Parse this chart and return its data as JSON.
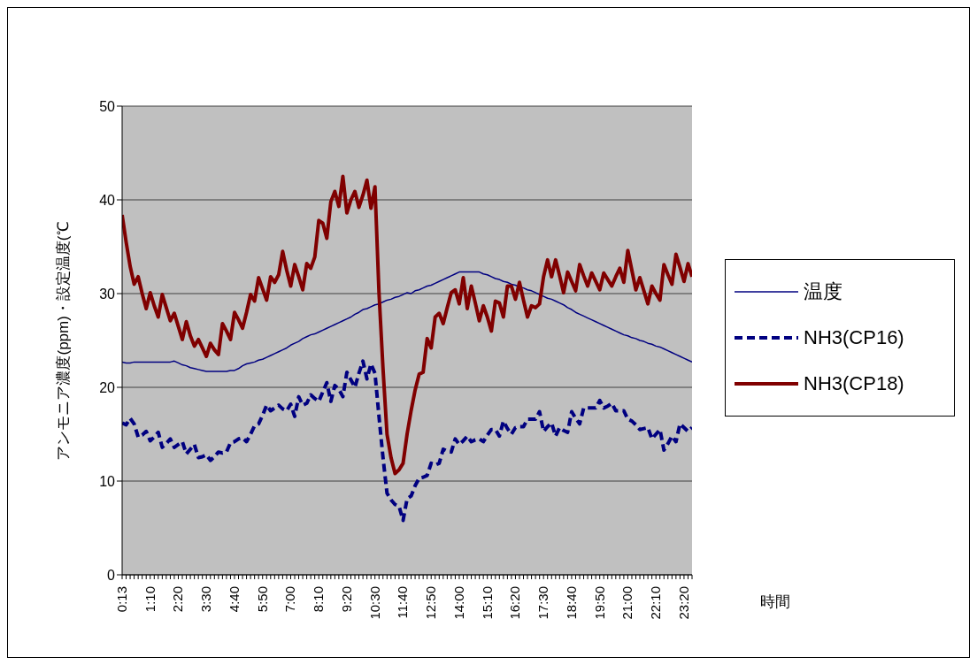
{
  "chart_data": {
    "type": "line",
    "ylabel": "アンモニア濃度(ppm)・設定温度(℃",
    "xlabel": "時間",
    "categories": [
      "0:13",
      null,
      null,
      null,
      null,
      null,
      null,
      "1:10",
      null,
      null,
      null,
      null,
      null,
      null,
      "2:20",
      null,
      null,
      null,
      null,
      null,
      null,
      "3:30",
      null,
      null,
      null,
      null,
      null,
      null,
      "4:40",
      null,
      null,
      null,
      null,
      null,
      null,
      "5:50",
      null,
      null,
      null,
      null,
      null,
      null,
      "7:00",
      null,
      null,
      null,
      null,
      null,
      null,
      "8:10",
      null,
      null,
      null,
      null,
      null,
      null,
      "9:20",
      null,
      null,
      null,
      null,
      null,
      null,
      "10:30",
      null,
      null,
      null,
      null,
      null,
      null,
      "11:40",
      null,
      null,
      null,
      null,
      null,
      null,
      "12:50",
      null,
      null,
      null,
      null,
      null,
      null,
      "14:00",
      null,
      null,
      null,
      null,
      null,
      null,
      "15:10",
      null,
      null,
      null,
      null,
      null,
      null,
      "16:20",
      null,
      null,
      null,
      null,
      null,
      null,
      "17:30",
      null,
      null,
      null,
      null,
      null,
      null,
      "18:40",
      null,
      null,
      null,
      null,
      null,
      null,
      "19:50",
      null,
      null,
      null,
      null,
      null,
      null,
      "21:00",
      null,
      null,
      null,
      null,
      null,
      null,
      "22:10",
      null,
      null,
      null,
      null,
      null,
      null,
      "23:20",
      null,
      null
    ],
    "series": [
      {
        "name": "温度",
        "color": "#000080",
        "line_style": "solid",
        "values": [
          22.7,
          22.6,
          22.6,
          22.7,
          22.7,
          22.7,
          22.7,
          22.7,
          22.7,
          22.7,
          22.7,
          22.7,
          22.7,
          22.8,
          22.6,
          22.4,
          22.3,
          22.1,
          22.0,
          21.9,
          21.8,
          21.7,
          21.7,
          21.7,
          21.7,
          21.7,
          21.7,
          21.8,
          21.8,
          22.0,
          22.3,
          22.5,
          22.6,
          22.7,
          22.9,
          23.0,
          23.2,
          23.4,
          23.6,
          23.8,
          24.0,
          24.2,
          24.5,
          24.7,
          24.9,
          25.2,
          25.4,
          25.6,
          25.7,
          25.9,
          26.1,
          26.3,
          26.5,
          26.7,
          26.9,
          27.1,
          27.3,
          27.5,
          27.8,
          28.0,
          28.3,
          28.4,
          28.6,
          28.8,
          28.9,
          29.1,
          29.3,
          29.4,
          29.6,
          29.7,
          29.9,
          30.1,
          30.0,
          30.3,
          30.4,
          30.6,
          30.8,
          30.9,
          31.1,
          31.3,
          31.5,
          31.7,
          31.9,
          32.1,
          32.3,
          32.3,
          32.3,
          32.3,
          32.3,
          32.3,
          32.1,
          32.0,
          31.8,
          31.6,
          31.5,
          31.3,
          31.2,
          31.0,
          30.9,
          30.7,
          30.6,
          30.4,
          30.3,
          30.1,
          29.9,
          29.7,
          29.5,
          29.4,
          29.2,
          29.0,
          28.8,
          28.5,
          28.3,
          28.0,
          27.8,
          27.6,
          27.4,
          27.2,
          27.0,
          26.8,
          26.6,
          26.4,
          26.2,
          26.0,
          25.8,
          25.6,
          25.5,
          25.3,
          25.2,
          25.0,
          24.9,
          24.7,
          24.6,
          24.4,
          24.3,
          24.1,
          23.9,
          23.7,
          23.5,
          23.3,
          23.1,
          22.9,
          22.7
        ]
      },
      {
        "name": "NH3(CP16)",
        "color": "#000080",
        "line_style": "dashed",
        "values": [
          16.2,
          16.0,
          16.7,
          16.1,
          14.7,
          14.9,
          15.3,
          14.3,
          14.7,
          15.2,
          13.6,
          14.0,
          14.5,
          13.6,
          13.9,
          14.2,
          12.9,
          13.4,
          13.9,
          12.5,
          12.6,
          12.8,
          12.2,
          12.6,
          13.1,
          13.0,
          13.1,
          14.1,
          14.2,
          14.5,
          14.6,
          14.2,
          15.0,
          15.9,
          16.1,
          17.0,
          18.1,
          17.5,
          17.8,
          18.1,
          17.7,
          17.5,
          18.2,
          16.9,
          19.0,
          18.1,
          18.3,
          19.2,
          18.8,
          18.5,
          19.5,
          20.5,
          18.5,
          20.2,
          19.8,
          19.0,
          21.6,
          20.8,
          20.0,
          21.5,
          22.8,
          20.9,
          22.5,
          21.5,
          16.9,
          12.5,
          8.7,
          8.0,
          7.5,
          7.3,
          5.8,
          8.1,
          8.4,
          9.5,
          10.3,
          10.4,
          10.6,
          11.9,
          11.7,
          11.9,
          13.4,
          13.2,
          13.1,
          14.5,
          13.9,
          14.3,
          14.8,
          14.2,
          14.4,
          14.5,
          14.2,
          14.9,
          15.5,
          15.5,
          14.8,
          16.4,
          15.6,
          15.0,
          15.7,
          15.8,
          15.8,
          16.6,
          16.6,
          16.6,
          17.4,
          15.3,
          15.8,
          16.2,
          14.8,
          15.7,
          15.4,
          15.2,
          17.4,
          16.7,
          16.1,
          17.8,
          17.8,
          17.8,
          17.8,
          18.6,
          17.8,
          18.0,
          18.3,
          17.5,
          17.5,
          17.5,
          16.6,
          16.4,
          16.0,
          15.5,
          15.6,
          15.7,
          14.5,
          15.0,
          15.5,
          13.3,
          14.0,
          14.8,
          14.2,
          16.1,
          15.7,
          15.3,
          15.7
        ]
      },
      {
        "name": "NH3(CP18)",
        "color": "#800000",
        "line_style": "solid",
        "values": [
          38.4,
          35.5,
          32.9,
          31.0,
          31.8,
          30.0,
          28.4,
          30.1,
          28.7,
          27.5,
          29.9,
          28.5,
          27.1,
          27.9,
          26.5,
          25.1,
          27.0,
          25.5,
          24.4,
          25.1,
          24.2,
          23.3,
          24.7,
          24.0,
          23.5,
          26.8,
          26.0,
          25.1,
          28.0,
          27.2,
          26.3,
          28.0,
          29.9,
          29.2,
          31.7,
          30.5,
          29.3,
          31.8,
          31.2,
          32.0,
          34.5,
          32.5,
          30.8,
          33.1,
          31.8,
          30.4,
          33.2,
          32.7,
          33.9,
          37.8,
          37.5,
          35.9,
          39.8,
          40.9,
          39.3,
          42.5,
          38.6,
          40.0,
          40.9,
          39.2,
          40.5,
          42.1,
          39.1,
          41.4,
          30.1,
          22.0,
          15.0,
          12.5,
          10.8,
          11.2,
          11.9,
          15.0,
          17.5,
          19.7,
          21.4,
          21.6,
          25.2,
          24.2,
          27.5,
          27.9,
          26.8,
          28.5,
          30.1,
          30.4,
          28.9,
          31.7,
          28.4,
          30.8,
          29.0,
          27.1,
          28.7,
          27.5,
          26.0,
          29.2,
          29.0,
          27.5,
          30.8,
          30.8,
          29.4,
          31.2,
          29.3,
          27.5,
          28.7,
          28.5,
          28.9,
          31.8,
          33.6,
          31.8,
          33.6,
          31.9,
          30.1,
          32.3,
          31.3,
          30.3,
          33.1,
          31.9,
          30.8,
          32.2,
          31.3,
          30.4,
          32.2,
          31.5,
          30.8,
          31.8,
          32.7,
          31.2,
          34.6,
          32.5,
          30.4,
          31.7,
          30.3,
          28.9,
          30.8,
          30.0,
          29.3,
          33.1,
          32.0,
          31.0,
          34.2,
          32.8,
          31.3,
          33.2,
          31.8
        ]
      }
    ],
    "ylim": [
      0,
      50
    ],
    "yticks": [
      0,
      10,
      20,
      30,
      40,
      50
    ],
    "grid": "y",
    "legend": "right",
    "marker": "none"
  }
}
